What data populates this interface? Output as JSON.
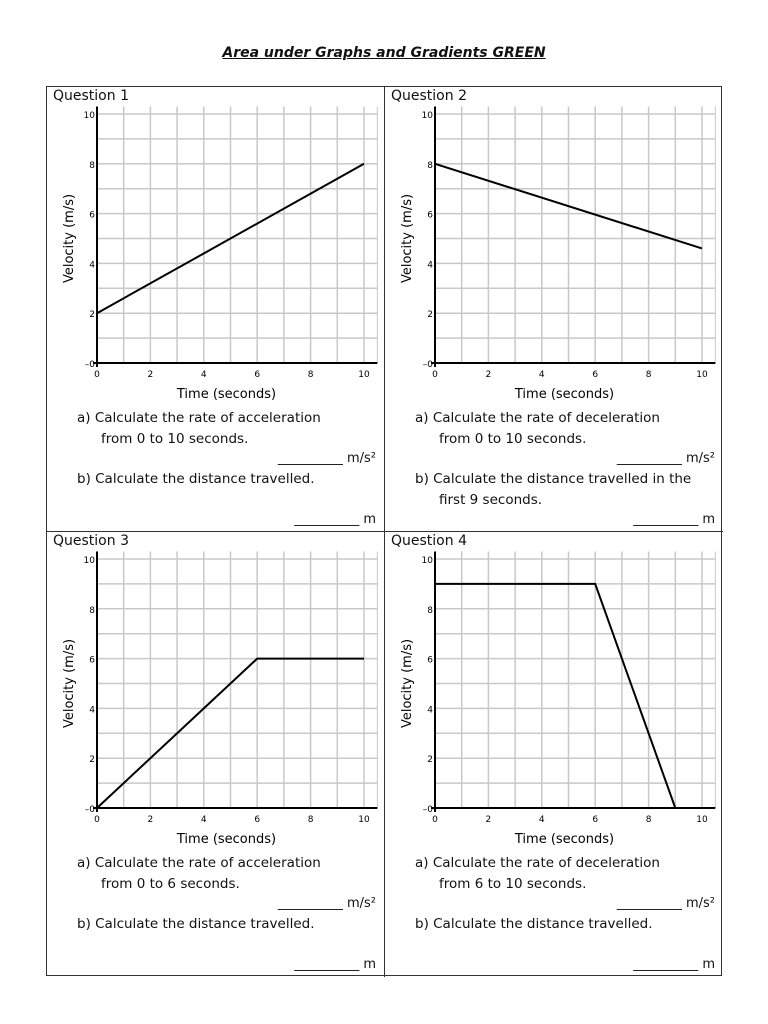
{
  "title": "Area under Graphs and Gradients GREEN",
  "questions": [
    {
      "label": "Question 1",
      "a": "a)  Calculate the rate of acceleration",
      "a2": "from 0 to 10 seconds.",
      "a_answer": "__________ m/s²",
      "b": "b)  Calculate the distance travelled.",
      "b2": "",
      "b_answer": "__________ m"
    },
    {
      "label": "Question 2",
      "a": "a)  Calculate the rate of deceleration",
      "a2": "from 0 to 10 seconds.",
      "a_answer": "__________ m/s²",
      "b": "b)  Calculate the distance travelled in the",
      "b2": "first 9 seconds.",
      "b_answer": "__________ m"
    },
    {
      "label": "Question 3",
      "a": "a)  Calculate the rate of acceleration",
      "a2": "from 0 to 6 seconds.",
      "a_answer": "__________ m/s²",
      "b": "b)  Calculate the distance travelled.",
      "b2": "",
      "b_answer": "__________ m"
    },
    {
      "label": "Question 4",
      "a": "a)  Calculate the rate of deceleration",
      "a2": "from 6 to 10 seconds.",
      "a_answer": "__________ m/s²",
      "b": "b)  Calculate the distance travelled.",
      "b2": "",
      "b_answer": "__________ m"
    }
  ],
  "chart_data": [
    {
      "type": "line",
      "xlabel": "Time (seconds)",
      "ylabel": "Velocity (m/s)",
      "xlim": [
        0,
        10
      ],
      "ylim": [
        0,
        10
      ],
      "grid": true,
      "xticks": [
        "0",
        "2",
        "4",
        "6",
        "8",
        "10"
      ],
      "yticks": [
        "0",
        "2",
        "4",
        "6",
        "8",
        "10"
      ],
      "points": [
        [
          0,
          2
        ],
        [
          10,
          8
        ]
      ]
    },
    {
      "type": "line",
      "xlabel": "Time (seconds)",
      "ylabel": "Velocity (m/s)",
      "xlim": [
        0,
        10
      ],
      "ylim": [
        0,
        10
      ],
      "grid": true,
      "xticks": [
        "0",
        "2",
        "4",
        "6",
        "8",
        "10"
      ],
      "yticks": [
        "0",
        "2",
        "4",
        "6",
        "8",
        "10"
      ],
      "points": [
        [
          0,
          8
        ],
        [
          10,
          4.6
        ]
      ]
    },
    {
      "type": "line",
      "xlabel": "Time (seconds)",
      "ylabel": "Velocity (m/s)",
      "xlim": [
        0,
        10
      ],
      "ylim": [
        0,
        10
      ],
      "grid": true,
      "xticks": [
        "0",
        "2",
        "4",
        "6",
        "8",
        "10"
      ],
      "yticks": [
        "0",
        "2",
        "4",
        "6",
        "8",
        "10"
      ],
      "points": [
        [
          0,
          0
        ],
        [
          6,
          6
        ],
        [
          10,
          6
        ]
      ]
    },
    {
      "type": "line",
      "xlabel": "Time (seconds)",
      "ylabel": "Velocity (m/s)",
      "xlim": [
        0,
        10
      ],
      "ylim": [
        0,
        10
      ],
      "grid": true,
      "xticks": [
        "0",
        "2",
        "4",
        "6",
        "8",
        "10"
      ],
      "yticks": [
        "0",
        "2",
        "4",
        "6",
        "8",
        "10"
      ],
      "points": [
        [
          0,
          9
        ],
        [
          6,
          9
        ],
        [
          9,
          0
        ]
      ]
    }
  ]
}
